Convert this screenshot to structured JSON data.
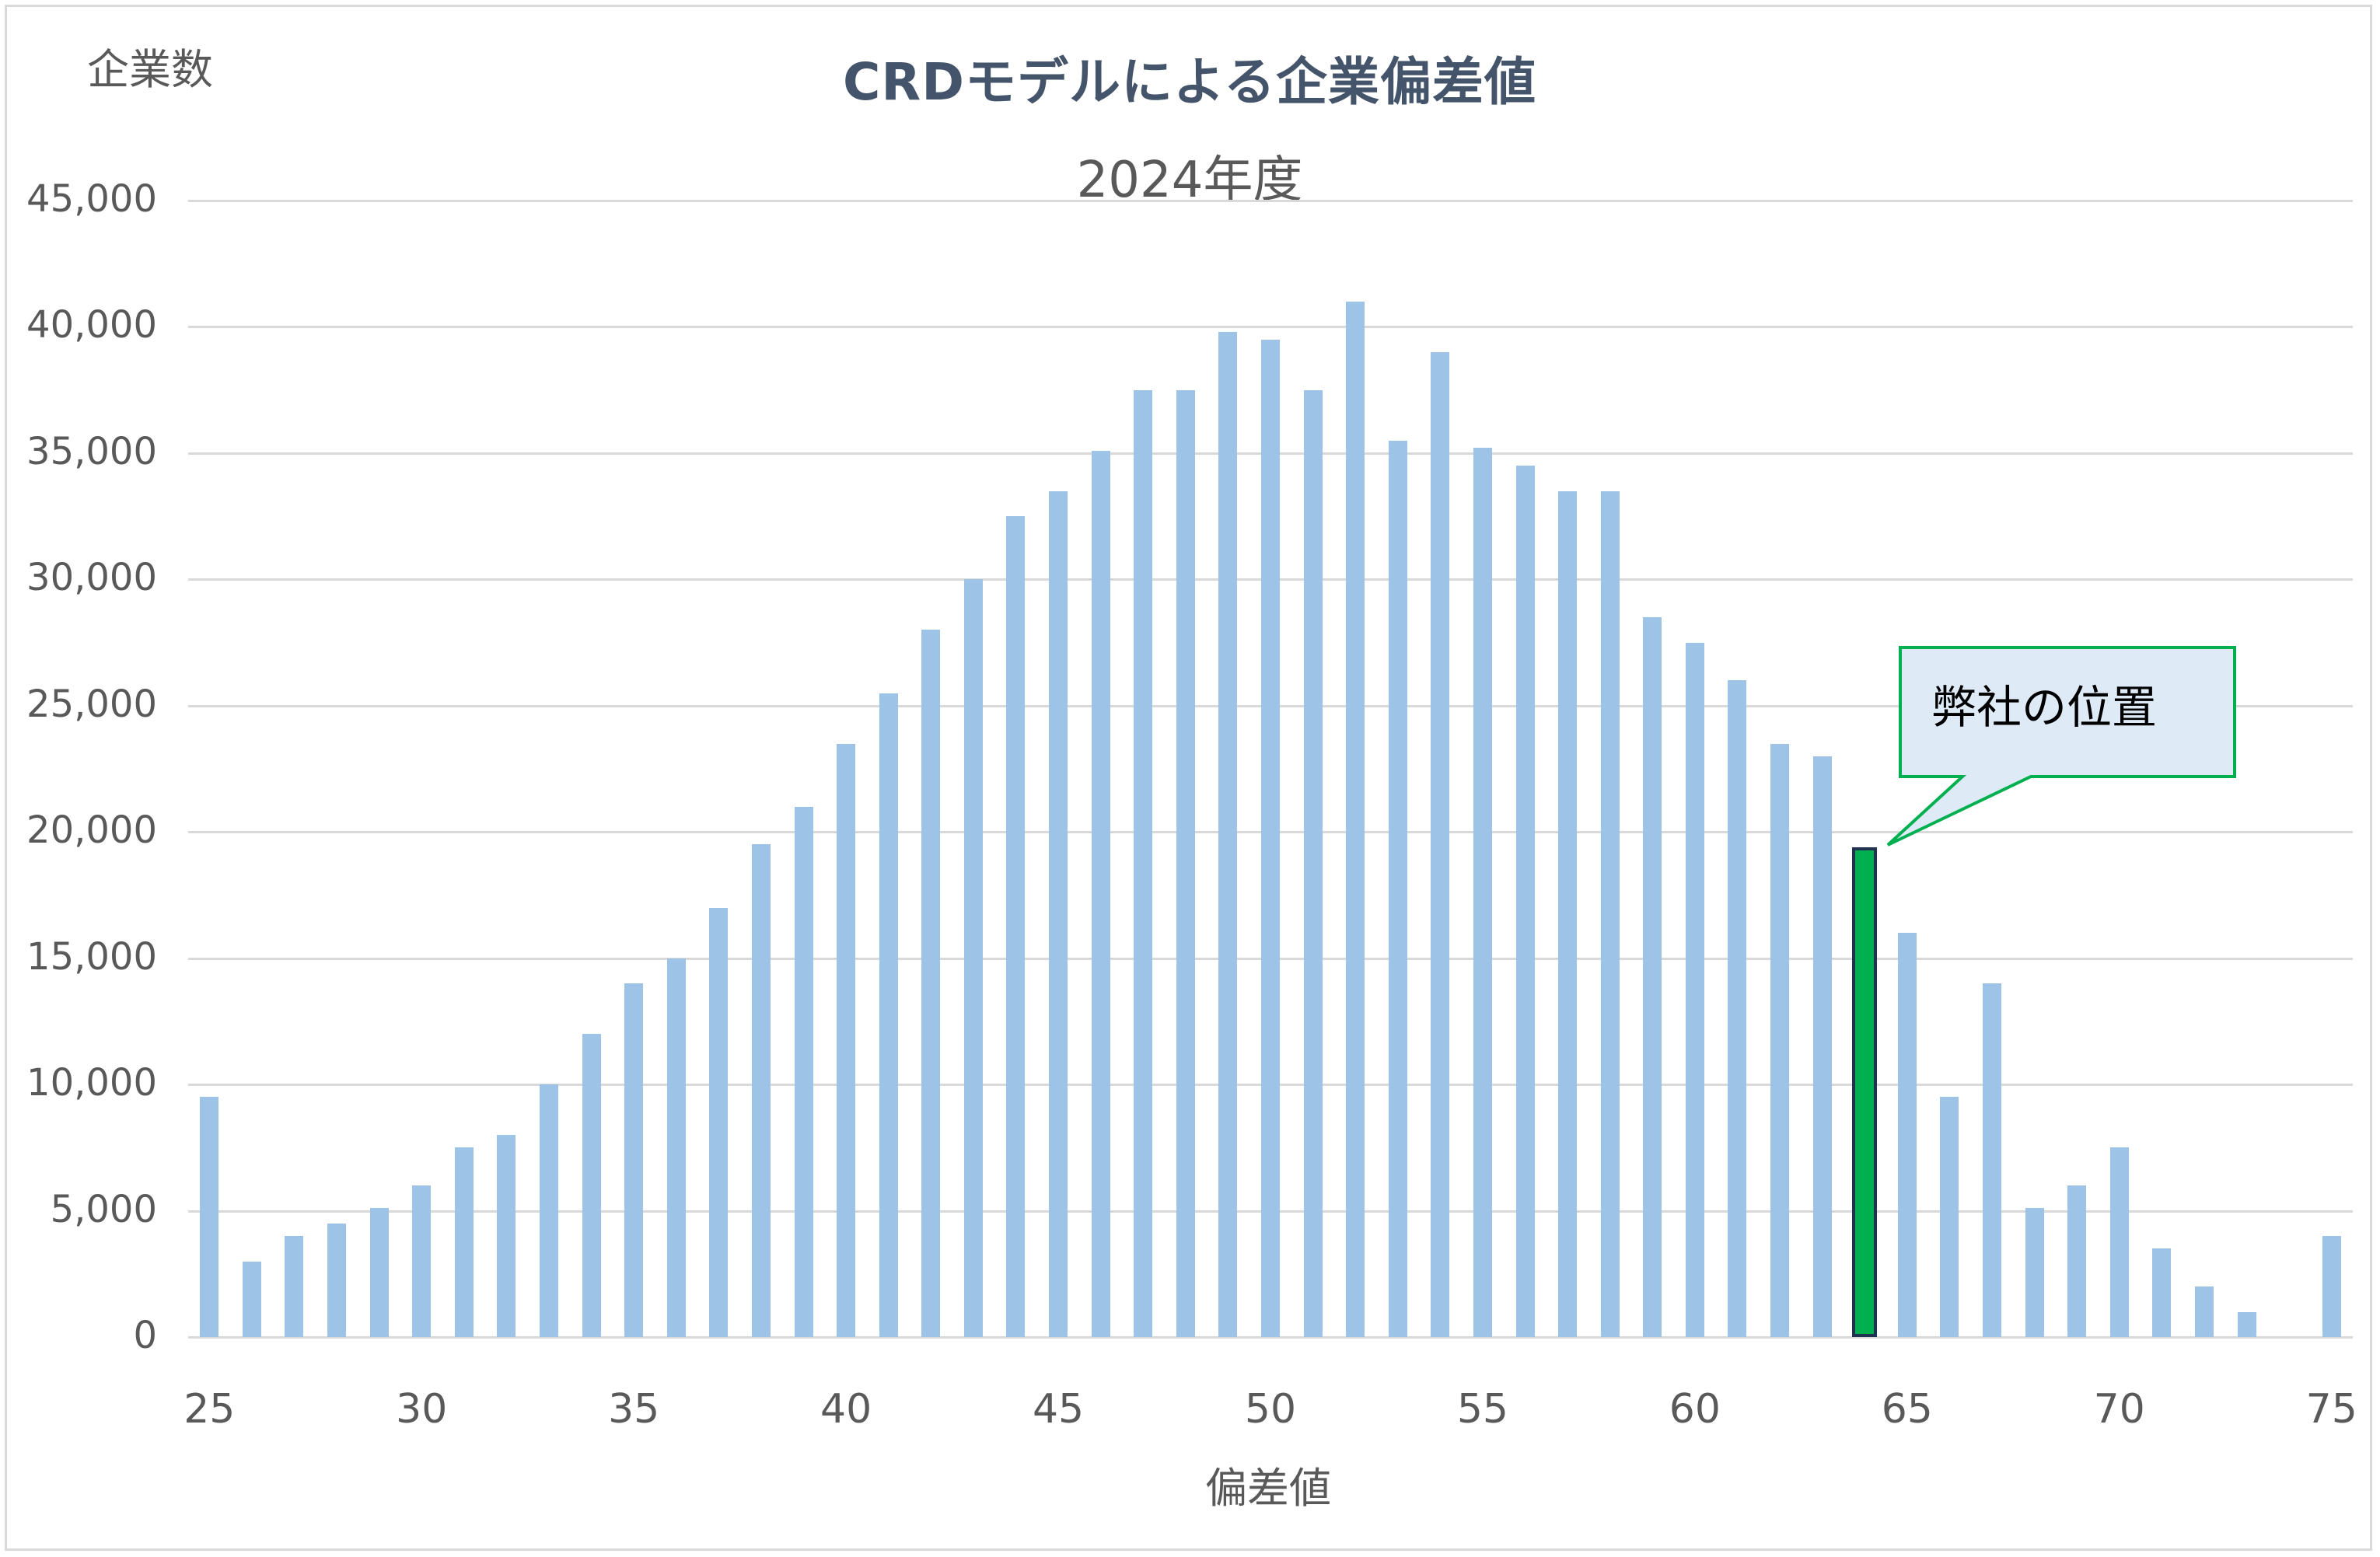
{
  "chart_data": {
    "type": "bar",
    "title": "CRDモデルによる企業偏差値",
    "subtitle": "2024年度",
    "xlabel": "偏差値",
    "ylabel": "企業数",
    "ylim": [
      0,
      45000
    ],
    "yticks": [
      "0",
      "5,000",
      "10,000",
      "15,000",
      "20,000",
      "25,000",
      "30,000",
      "35,000",
      "40,000",
      "45,000"
    ],
    "xticks": [
      "25",
      "30",
      "35",
      "40",
      "45",
      "50",
      "55",
      "60",
      "65",
      "70",
      "75"
    ],
    "grid": true,
    "categories": [
      25,
      26,
      27,
      28,
      29,
      30,
      31,
      32,
      33,
      34,
      35,
      36,
      37,
      38,
      39,
      40,
      41,
      42,
      43,
      44,
      45,
      46,
      47,
      48,
      49,
      50,
      51,
      52,
      53,
      54,
      55,
      56,
      57,
      58,
      59,
      60,
      61,
      62,
      63,
      64,
      65,
      66,
      67,
      68,
      69,
      70,
      71,
      72,
      73,
      74,
      75
    ],
    "values": [
      9500,
      3000,
      4000,
      4500,
      5100,
      6000,
      7500,
      8000,
      10000,
      12000,
      14000,
      15000,
      17000,
      19500,
      21000,
      23500,
      25500,
      28000,
      30000,
      32500,
      33500,
      35100,
      37500,
      37500,
      39800,
      39500,
      37500,
      41000,
      35500,
      39000,
      35200,
      34500,
      33500,
      33500,
      28500,
      27500,
      26000,
      23500,
      23000,
      19400,
      16000,
      9500,
      14000,
      5100,
      6000,
      7500,
      3500,
      2000,
      1000,
      0,
      4000
    ],
    "highlight": {
      "category": 64,
      "value": 19400,
      "label": "弊社の位置"
    },
    "colors": {
      "bar": "#9dc3e6",
      "highlight": "#00b050",
      "highlight_border": "#1f3350",
      "callout_fill": "#deebf7",
      "callout_border": "#00b050",
      "title": "#44546a"
    }
  }
}
